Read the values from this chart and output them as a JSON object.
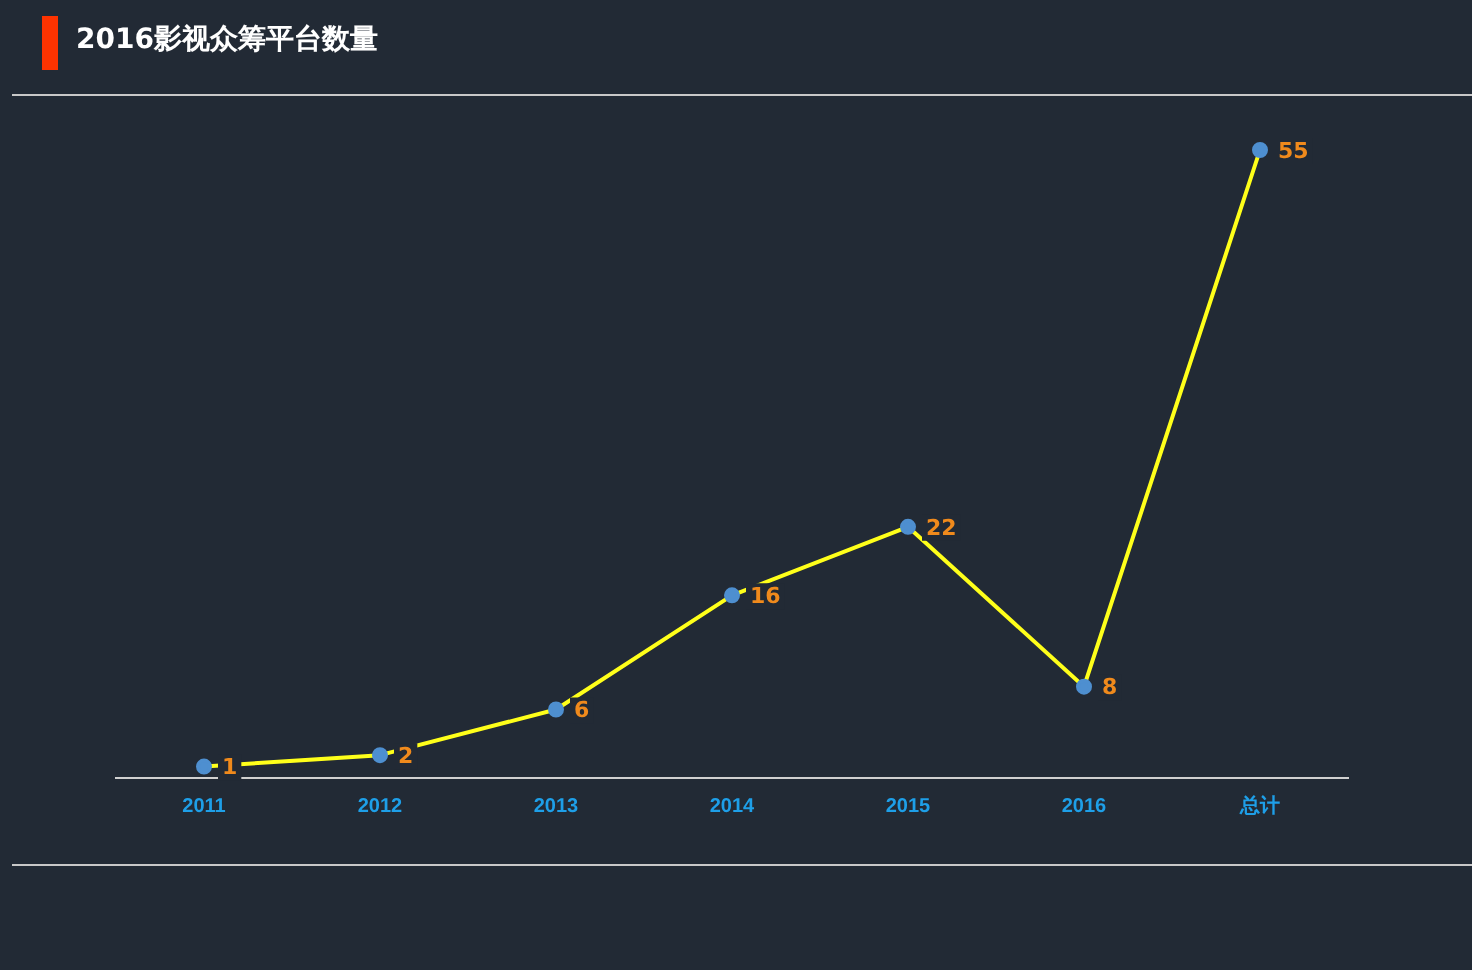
{
  "chart_data": {
    "type": "line",
    "title": "2016影视众筹平台数量",
    "categories": [
      "2011",
      "2012",
      "2013",
      "2014",
      "2015",
      "2016",
      "总计"
    ],
    "series": [
      {
        "color": "#ffff1a",
        "values": [
          1,
          2,
          6,
          16,
          22,
          8,
          55
        ]
      }
    ],
    "data_labels": true,
    "marker": "circle",
    "legend": false,
    "grid": false,
    "line_style": "solid"
  }
}
